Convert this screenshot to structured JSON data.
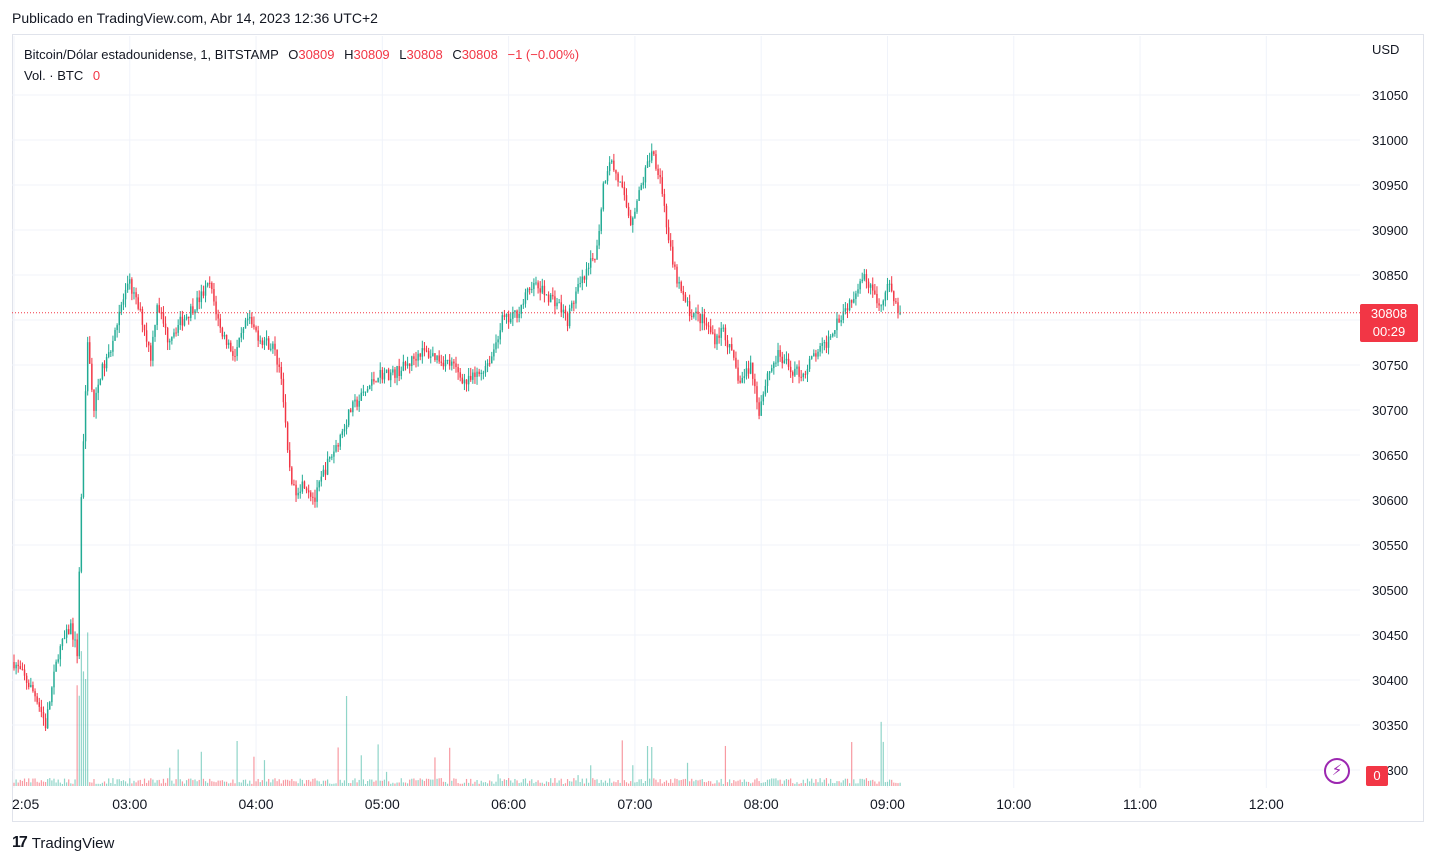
{
  "header": {
    "published": "Publicado en TradingView.com, Abr 14, 2023 12:36 UTC+2"
  },
  "legend": {
    "symbol": "Bitcoin/Dólar estadounidense, 1, BITSTAMP",
    "open_label": "O",
    "open": "30809",
    "high_label": "H",
    "high": "30809",
    "low_label": "L",
    "low": "30808",
    "close_label": "C",
    "close": "30808",
    "change": "−1 (−0.00%)",
    "volume_label": "Vol. · BTC",
    "volume": "0"
  },
  "axis": {
    "currency": "USD"
  },
  "last_price": {
    "price": "30808",
    "countdown": "00:29"
  },
  "volume_tag": "0",
  "footer": {
    "brand": "TradingView"
  },
  "colors": {
    "up": "#22ab94",
    "down": "#f23645",
    "grid": "#f0f3fa",
    "text": "#131722",
    "indicator": "#9c27b0"
  },
  "icons": {
    "lightning": "lightning-icon",
    "logo": "tradingview-logo-icon"
  },
  "chart_data": {
    "type": "candlestick",
    "symbol": "Bitcoin/Dólar estadounidense, 1, BITSTAMP",
    "y_axis": {
      "ticks": [
        30300,
        30350,
        30400,
        30450,
        30500,
        30550,
        30600,
        30650,
        30700,
        30750,
        30800,
        30850,
        30900,
        30950,
        31000,
        31050
      ],
      "ylim": [
        30270,
        31100
      ]
    },
    "x_axis": {
      "ticks": [
        "2:05",
        "03:00",
        "04:00",
        "05:00",
        "06:00",
        "07:00",
        "08:00",
        "09:00",
        "10:00",
        "11:00",
        "12:00"
      ],
      "tick_minutes": [
        125,
        180,
        240,
        300,
        360,
        420,
        480,
        540,
        600,
        660,
        720
      ],
      "range_minutes": [
        125,
        755
      ]
    },
    "anchor_path": [
      [
        125,
        30420
      ],
      [
        132,
        30395
      ],
      [
        136,
        30380
      ],
      [
        140,
        30350
      ],
      [
        146,
        30430
      ],
      [
        152,
        30460
      ],
      [
        155,
        30430
      ],
      [
        157,
        30600
      ],
      [
        160,
        30780
      ],
      [
        163,
        30700
      ],
      [
        166,
        30740
      ],
      [
        170,
        30760
      ],
      [
        175,
        30810
      ],
      [
        180,
        30840
      ],
      [
        186,
        30800
      ],
      [
        190,
        30760
      ],
      [
        193,
        30820
      ],
      [
        198,
        30780
      ],
      [
        205,
        30800
      ],
      [
        212,
        30820
      ],
      [
        218,
        30840
      ],
      [
        223,
        30790
      ],
      [
        230,
        30760
      ],
      [
        236,
        30800
      ],
      [
        242,
        30780
      ],
      [
        248,
        30770
      ],
      [
        252,
        30740
      ],
      [
        255,
        30650
      ],
      [
        258,
        30610
      ],
      [
        263,
        30620
      ],
      [
        268,
        30600
      ],
      [
        272,
        30630
      ],
      [
        278,
        30660
      ],
      [
        285,
        30700
      ],
      [
        292,
        30720
      ],
      [
        298,
        30740
      ],
      [
        305,
        30740
      ],
      [
        312,
        30750
      ],
      [
        318,
        30765
      ],
      [
        325,
        30760
      ],
      [
        333,
        30750
      ],
      [
        340,
        30730
      ],
      [
        346,
        30740
      ],
      [
        352,
        30760
      ],
      [
        357,
        30800
      ],
      [
        361,
        30800
      ],
      [
        366,
        30815
      ],
      [
        371,
        30840
      ],
      [
        377,
        30830
      ],
      [
        383,
        30820
      ],
      [
        388,
        30800
      ],
      [
        392,
        30830
      ],
      [
        397,
        30850
      ],
      [
        402,
        30880
      ],
      [
        405,
        30950
      ],
      [
        408,
        30980
      ],
      [
        413,
        30950
      ],
      [
        418,
        30910
      ],
      [
        422,
        30940
      ],
      [
        428,
        30990
      ],
      [
        432,
        30960
      ],
      [
        436,
        30890
      ],
      [
        438,
        30860
      ],
      [
        442,
        30830
      ],
      [
        446,
        30810
      ],
      [
        452,
        30800
      ],
      [
        458,
        30780
      ],
      [
        462,
        30790
      ],
      [
        466,
        30760
      ],
      [
        470,
        30730
      ],
      [
        475,
        30750
      ],
      [
        479,
        30700
      ],
      [
        483,
        30740
      ],
      [
        488,
        30760
      ],
      [
        494,
        30745
      ],
      [
        500,
        30740
      ],
      [
        505,
        30760
      ],
      [
        510,
        30770
      ],
      [
        516,
        30800
      ],
      [
        522,
        30820
      ],
      [
        528,
        30850
      ],
      [
        532,
        30840
      ],
      [
        536,
        30810
      ],
      [
        540,
        30840
      ],
      [
        544,
        30815
      ],
      [
        546,
        30808
      ]
    ],
    "note_volume": "Volume bars shown along bottom of pane"
  }
}
